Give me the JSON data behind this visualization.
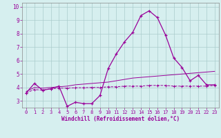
{
  "x": [
    0,
    1,
    2,
    3,
    4,
    5,
    6,
    7,
    8,
    9,
    10,
    11,
    12,
    13,
    14,
    15,
    16,
    17,
    18,
    19,
    20,
    21,
    22,
    23
  ],
  "line_main": [
    3.6,
    4.3,
    3.8,
    3.9,
    4.1,
    2.6,
    2.9,
    2.8,
    2.8,
    3.4,
    5.4,
    6.5,
    7.4,
    8.1,
    9.35,
    9.7,
    9.2,
    7.9,
    6.2,
    5.5,
    4.5,
    4.9,
    4.2,
    4.2
  ],
  "line_lower": [
    3.6,
    3.85,
    3.8,
    3.9,
    3.95,
    3.95,
    3.98,
    3.98,
    4.0,
    4.0,
    4.05,
    4.05,
    4.1,
    4.1,
    4.1,
    4.15,
    4.15,
    4.15,
    4.1,
    4.1,
    4.1,
    4.1,
    4.1,
    4.15
  ],
  "line_upper": [
    3.7,
    4.0,
    3.95,
    4.0,
    4.05,
    4.1,
    4.2,
    4.25,
    4.3,
    4.35,
    4.4,
    4.5,
    4.6,
    4.7,
    4.75,
    4.8,
    4.85,
    4.9,
    4.95,
    5.0,
    5.05,
    5.1,
    5.15,
    5.2
  ],
  "line_color": "#990099",
  "bg_color": "#d6efef",
  "grid_color": "#aacccc",
  "xlabel": "Windchill (Refroidissement éolien,°C)",
  "xlim": [
    -0.5,
    23.5
  ],
  "ylim": [
    2.5,
    10.3
  ],
  "yticks": [
    3,
    4,
    5,
    6,
    7,
    8,
    9,
    10
  ],
  "xticks": [
    0,
    1,
    2,
    3,
    4,
    5,
    6,
    7,
    8,
    9,
    10,
    11,
    12,
    13,
    14,
    15,
    16,
    17,
    18,
    19,
    20,
    21,
    22,
    23
  ]
}
